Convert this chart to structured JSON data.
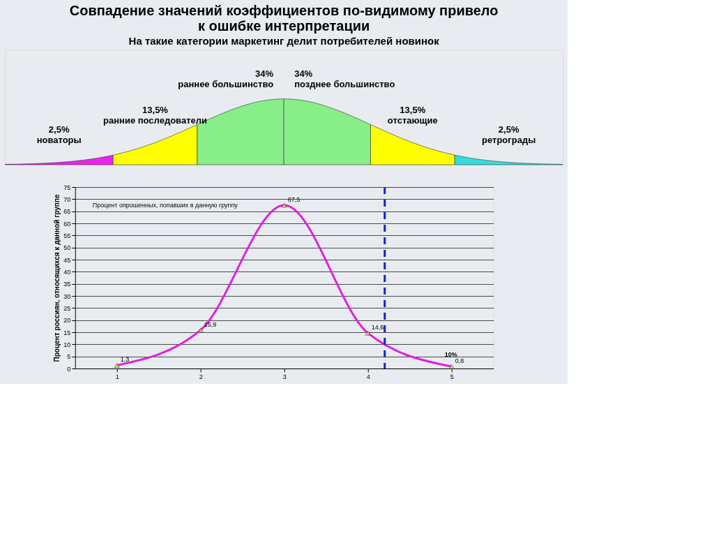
{
  "chart_data": [
    {
      "type": "other",
      "title": "Совпадение значений коэффициентов по-видимому привело к ошибке интерпретации",
      "subtitle": "На такие категории маркетинг делит потребителей новинок",
      "categories": [
        "новаторы",
        "ранние последователи",
        "раннее большинство",
        "позднее большинство",
        "отстающие",
        "ретрограды"
      ],
      "values": [
        2.5,
        13.5,
        34,
        34,
        13.5,
        2.5
      ],
      "value_labels": [
        "2,5%",
        "13,5%",
        "34%",
        "34%",
        "13,5%",
        "2,5%"
      ],
      "colors": [
        "#ee22ee",
        "#ffff00",
        "#88ee88",
        "#88ee88",
        "#ffff00",
        "#33dddd"
      ]
    },
    {
      "type": "line",
      "x": [
        1,
        2,
        3,
        4,
        5
      ],
      "series": [
        {
          "name": "Процент опрошенных, попавших в данную группу",
          "color": "#dd22dd",
          "values": [
            1.3,
            15.9,
            67.5,
            14.6,
            0.8
          ]
        }
      ],
      "value_labels": [
        "1,3",
        "15,9",
        "67,5",
        "14,6",
        "0,8"
      ],
      "ylabel": "Процент россиян, относящихся к данной группе",
      "xlim": [
        0.5,
        5.5
      ],
      "xticks": [
        1,
        2,
        3,
        4,
        5
      ],
      "ylim": [
        0,
        75
      ],
      "yticks": [
        0,
        5,
        10,
        15,
        20,
        25,
        30,
        35,
        40,
        45,
        50,
        55,
        60,
        65,
        70,
        75
      ],
      "grid": "y",
      "marker": "triangle",
      "line_style": "solid",
      "legend": "top left",
      "annotations": [
        "10%"
      ],
      "ref_lines": [
        {
          "axis": "x",
          "value": 4.2,
          "color": "#1122cc",
          "line_style": "dashed"
        }
      ]
    }
  ]
}
